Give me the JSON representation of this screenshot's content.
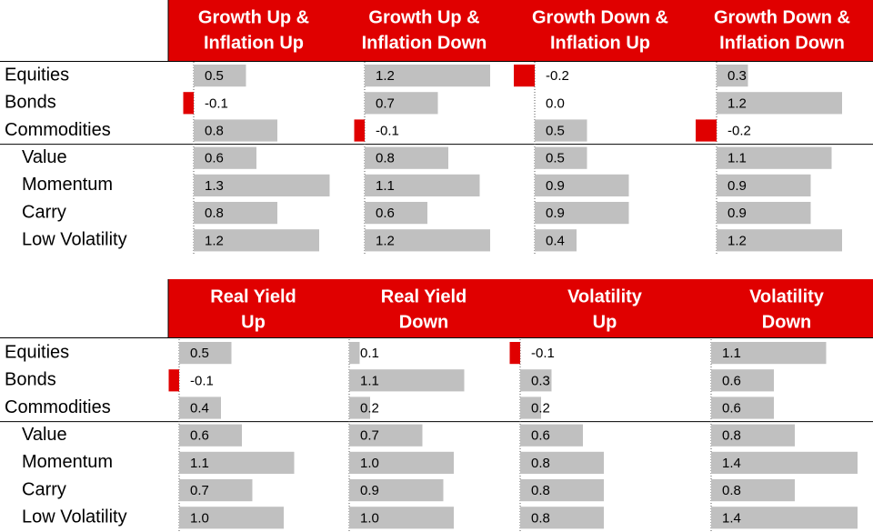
{
  "tables": [
    {
      "headers": [
        [
          "Growth Up &",
          "Inflation Up"
        ],
        [
          "Growth Up &",
          "Inflation Down"
        ],
        [
          "Growth Down &",
          "Inflation Up"
        ],
        [
          "Growth Down &",
          "Inflation Down"
        ]
      ],
      "rows": [
        "Equities",
        "Bonds",
        "Commodities",
        "Value",
        "Momentum",
        "Carry",
        "Low Volatility"
      ],
      "columns": [
        {
          "values": [
            0.5,
            -0.1,
            0.8,
            0.6,
            1.3,
            0.8,
            1.2
          ],
          "value_labels": [
            "0.5",
            "-0.1",
            "0.8",
            "0.6",
            "1.3",
            "0.8",
            "1.2"
          ]
        },
        {
          "values": [
            1.2,
            0.7,
            -0.1,
            0.8,
            1.1,
            0.6,
            1.2
          ],
          "value_labels": [
            "1.2",
            "0.7",
            "-0.1",
            "0.8",
            "1.1",
            "0.6",
            "1.2"
          ]
        },
        {
          "values": [
            -0.2,
            0.0,
            0.5,
            0.5,
            0.9,
            0.9,
            0.4
          ],
          "value_labels": [
            "-0.2",
            "0.0",
            "0.5",
            "0.5",
            "0.9",
            "0.9",
            "0.4"
          ]
        },
        {
          "values": [
            0.3,
            1.2,
            -0.2,
            1.1,
            0.9,
            0.9,
            1.2
          ],
          "value_labels": [
            "0.3",
            "1.2",
            "-0.2",
            "1.1",
            "0.9",
            "0.9",
            "1.2"
          ]
        }
      ]
    },
    {
      "headers": [
        [
          "Real Yield",
          "Up"
        ],
        [
          "Real Yield",
          "Down"
        ],
        [
          "Volatility",
          "Up"
        ],
        [
          "Volatility",
          "Down"
        ]
      ],
      "rows": [
        "Equities",
        "Bonds",
        "Commodities",
        "Value",
        "Momentum",
        "Carry",
        "Low Volatility"
      ],
      "columns": [
        {
          "values": [
            0.5,
            -0.1,
            0.4,
            0.6,
            1.1,
            0.7,
            1.0
          ],
          "value_labels": [
            "0.5",
            "-0.1",
            "0.4",
            "0.6",
            "1.1",
            "0.7",
            "1.0"
          ]
        },
        {
          "values": [
            0.1,
            1.1,
            0.2,
            0.7,
            1.0,
            0.9,
            1.0
          ],
          "value_labels": [
            "0.1",
            "1.1",
            "0.2",
            "0.7",
            "1.0",
            "0.9",
            "1.0"
          ]
        },
        {
          "values": [
            -0.1,
            0.3,
            0.2,
            0.6,
            0.8,
            0.8,
            0.8
          ],
          "value_labels": [
            "-0.1",
            "0.3",
            "0.2",
            "0.6",
            "0.8",
            "0.8",
            "0.8"
          ]
        },
        {
          "values": [
            1.1,
            0.6,
            0.6,
            0.8,
            1.4,
            0.8,
            1.4
          ],
          "value_labels": [
            "1.1",
            "0.6",
            "0.6",
            "0.8",
            "1.4",
            "0.8",
            "1.4"
          ]
        }
      ]
    }
  ]
}
